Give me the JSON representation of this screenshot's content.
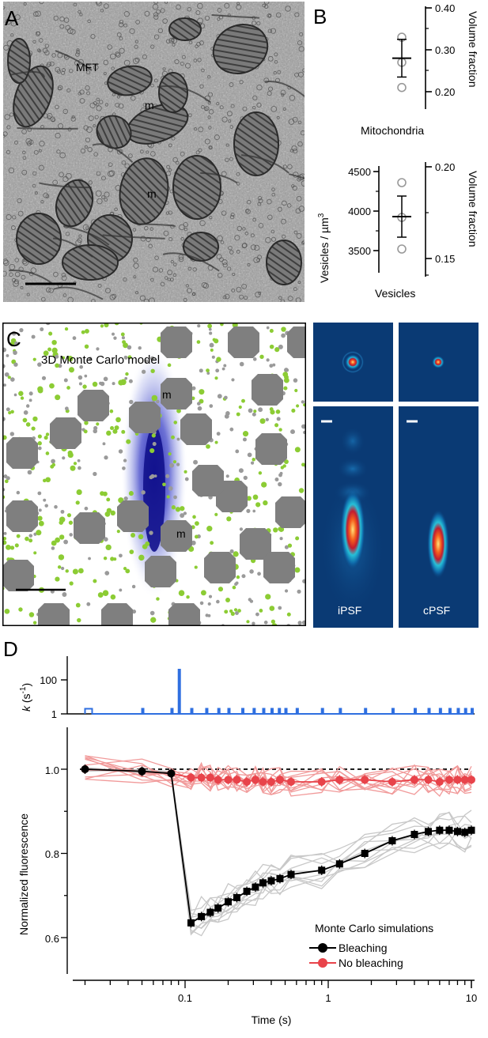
{
  "figure": {
    "panel_letters": {
      "a": "A",
      "b": "B",
      "c": "C",
      "d": "D"
    },
    "panelA": {
      "label_mft": "MFT",
      "label_m1": "m",
      "label_m2": "m"
    },
    "panelB": {
      "top": {
        "axis_label": "Volume fraction",
        "ticks": [
          "0.40",
          "0.30",
          "0.20"
        ],
        "category": "Mitochondria",
        "points": [
          0.33,
          0.27,
          0.21
        ],
        "mean": 0.28,
        "sd": 0.045
      },
      "bottom": {
        "left_axis_label": "Vesicles / µm",
        "left_axis_sup": "3",
        "left_ticks": [
          "4500",
          "4000",
          "3500"
        ],
        "right_axis_label": "Volume fraction",
        "right_ticks": [
          "0.20",
          "0.15"
        ],
        "category": "Vesicles",
        "points": [
          4360,
          3920,
          3520
        ],
        "mean": 3930,
        "sd": 260
      }
    },
    "panelC": {
      "title": "3D Monte Carlo model",
      "label_m1": "m",
      "label_m2": "m",
      "psf_left": "iPSF",
      "psf_right": "cPSF"
    },
    "panelD": {
      "k_axis_label": "k",
      "k_axis_unit_open": " (s",
      "k_axis_unit_sup": "-1",
      "k_axis_unit_close": ")",
      "k_ticks": [
        "100",
        "10",
        "1"
      ],
      "y_label": "Normalized fluorescence",
      "y_ticks": [
        "1.0",
        "0.8",
        "0.6"
      ],
      "x_label": "Time (s)",
      "x_ticks": [
        "0.1",
        "1",
        "10"
      ],
      "legend_title": "Monte Carlo simulations",
      "legend_bleach": "Bleaching",
      "legend_nobleach": "No bleaching",
      "colors": {
        "bleach": "#000000",
        "nobleach": "#e8434a",
        "k_trace": "#2f6fe0",
        "sim_bleach": "#c8c8c8",
        "sim_nobleach": "#f19a9a"
      }
    }
  },
  "chart_data": [
    {
      "type": "scatter",
      "title": "",
      "xlabel": "Mitochondria",
      "ylabel": "Volume fraction",
      "ylim": [
        0.15,
        0.4
      ],
      "values": [
        0.33,
        0.27,
        0.21
      ],
      "mean": 0.28,
      "sd": 0.045
    },
    {
      "type": "scatter",
      "title": "",
      "xlabel": "Vesicles",
      "ylabel": "Vesicles / µm3",
      "ylim": [
        3300,
        4550
      ],
      "values": [
        4360,
        3920,
        3520
      ],
      "mean": 3930,
      "sd": 260
    },
    {
      "type": "line",
      "title": "",
      "xlabel": "Time (s)",
      "ylabel": "k (s-1)",
      "xscale": "log",
      "yscale": "log",
      "xlim": [
        0.01,
        10
      ],
      "ylim": [
        1,
        500
      ],
      "x": [
        0.02,
        0.05,
        0.08,
        0.09,
        0.11,
        0.14,
        0.17,
        0.2,
        0.25,
        0.3,
        0.35,
        0.4,
        0.45,
        0.5,
        0.6,
        0.9,
        1.2,
        1.8,
        2.8,
        4,
        5,
        6,
        7,
        8,
        9,
        10
      ],
      "values": [
        2,
        2,
        2,
        400,
        2,
        2,
        2,
        2,
        2,
        2,
        2,
        2,
        2,
        2,
        2,
        2,
        2,
        2,
        2,
        2,
        2,
        2,
        2,
        2,
        2,
        2
      ]
    },
    {
      "type": "line",
      "title": "",
      "xlabel": "Time (s)",
      "ylabel": "Normalized fluorescence",
      "xscale": "log",
      "xlim": [
        0.01,
        10
      ],
      "ylim": [
        0.54,
        1.1
      ],
      "series": [
        {
          "name": "Bleaching",
          "x": [
            0.02,
            0.05,
            0.08,
            0.11,
            0.13,
            0.15,
            0.17,
            0.2,
            0.23,
            0.27,
            0.31,
            0.35,
            0.4,
            0.46,
            0.55,
            0.9,
            1.2,
            1.8,
            2.8,
            4,
            5,
            6,
            7,
            8,
            9,
            10
          ],
          "values": [
            1.0,
            0.995,
            0.99,
            0.635,
            0.65,
            0.66,
            0.67,
            0.685,
            0.695,
            0.71,
            0.72,
            0.73,
            0.735,
            0.74,
            0.75,
            0.76,
            0.775,
            0.8,
            0.83,
            0.845,
            0.852,
            0.855,
            0.855,
            0.852,
            0.85,
            0.855
          ]
        },
        {
          "name": "No bleaching",
          "x": [
            0.02,
            0.05,
            0.08,
            0.11,
            0.13,
            0.15,
            0.17,
            0.2,
            0.23,
            0.27,
            0.31,
            0.35,
            0.4,
            0.46,
            0.55,
            0.9,
            1.2,
            1.8,
            2.8,
            4,
            5,
            6,
            7,
            8,
            9,
            10
          ],
          "values": [
            1.0,
            0.995,
            0.99,
            0.98,
            0.98,
            0.98,
            0.975,
            0.975,
            0.975,
            0.97,
            0.975,
            0.97,
            0.97,
            0.975,
            0.97,
            0.97,
            0.975,
            0.975,
            0.97,
            0.975,
            0.975,
            0.97,
            0.975,
            0.975,
            0.975,
            0.975
          ]
        }
      ]
    }
  ]
}
